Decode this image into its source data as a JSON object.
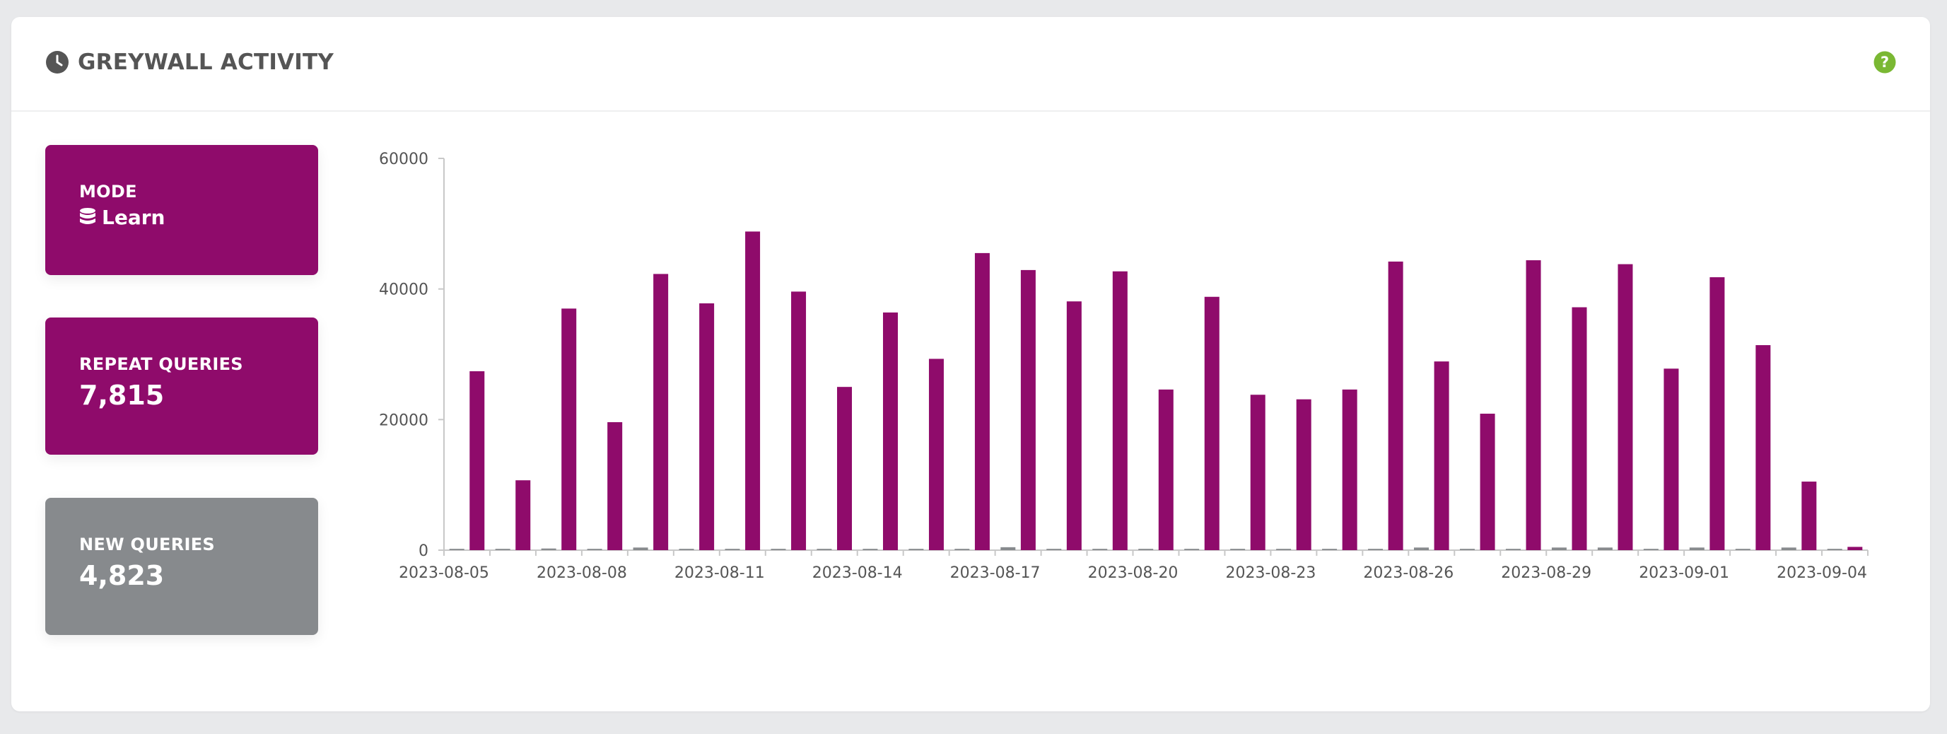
{
  "header": {
    "title": "GREYWALL ACTIVITY",
    "title_icon": "clock-icon",
    "help_icon": "help-circle-icon"
  },
  "stats": {
    "mode": {
      "label": "MODE",
      "value": "Learn",
      "icon": "database-icon"
    },
    "repeat": {
      "label": "REPEAT QUERIES",
      "value": "7,815"
    },
    "new": {
      "label": "NEW QUERIES",
      "value": "4,823"
    }
  },
  "colors": {
    "accent": "#8f0b6b",
    "neutral": "#878a8d",
    "help": "#7ab833"
  },
  "chart_data": {
    "type": "bar",
    "title": "",
    "xlabel": "",
    "ylabel": "",
    "ylim": [
      0,
      60000
    ],
    "yticks": [
      "0",
      "20000",
      "40000",
      "60000"
    ],
    "xtick_labels": [
      "2023-08-05",
      "2023-08-08",
      "2023-08-11",
      "2023-08-14",
      "2023-08-17",
      "2023-08-20",
      "2023-08-23",
      "2023-08-26",
      "2023-08-29",
      "2023-09-01",
      "2023-09-04"
    ],
    "grid": false,
    "legend": "none",
    "categories": [
      "2023-08-05",
      "2023-08-06",
      "2023-08-07",
      "2023-08-08",
      "2023-08-09",
      "2023-08-10",
      "2023-08-11",
      "2023-08-12",
      "2023-08-13",
      "2023-08-14",
      "2023-08-15",
      "2023-08-16",
      "2023-08-17",
      "2023-08-18",
      "2023-08-19",
      "2023-08-20",
      "2023-08-21",
      "2023-08-22",
      "2023-08-23",
      "2023-08-24",
      "2023-08-25",
      "2023-08-26",
      "2023-08-27",
      "2023-08-28",
      "2023-08-29",
      "2023-08-30",
      "2023-08-31",
      "2023-09-01",
      "2023-09-02",
      "2023-09-03",
      "2023-09-04"
    ],
    "series": [
      {
        "color": "#878a8d",
        "values": [
          200,
          200,
          250,
          200,
          400,
          200,
          200,
          200,
          200,
          200,
          200,
          200,
          450,
          200,
          200,
          200,
          200,
          200,
          200,
          200,
          200,
          400,
          200,
          200,
          400,
          400,
          200,
          400,
          200,
          400,
          200
        ]
      },
      {
        "color": "#8f0b6b",
        "values": [
          27400,
          10700,
          37000,
          19600,
          42300,
          37800,
          48800,
          39600,
          25000,
          36400,
          29300,
          45500,
          42900,
          38100,
          42700,
          24600,
          38800,
          23800,
          23100,
          24600,
          44200,
          28900,
          20900,
          44400,
          37200,
          43800,
          27800,
          41800,
          31400,
          10500,
          500
        ]
      }
    ]
  }
}
